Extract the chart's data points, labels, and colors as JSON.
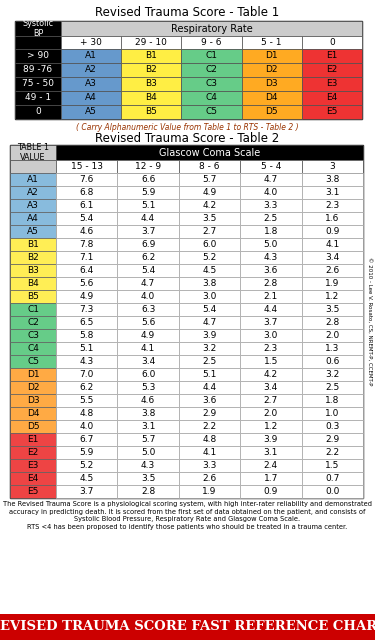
{
  "title1": "Revised Trauma Score - Table 1",
  "title2": "Revised Trauma Score - Table 2",
  "carry_text": "( Carry Alphanumeric Value from Table 1 to RTS - Table 2 )",
  "footer_text": "The Revised Trauma Score is a physiological scoring system, with high inter-rater reliability and demonstrated\naccuracy in predicting death. It is scored from the first set of data obtained on the patient, and consists of\nSystolic Blood Pressure, Respiratory Rate and Glasgow Coma Scale.\nRTS <4 has been proposed to identify those patients who should be treated in a trauma center.",
  "bottom_banner": "Revised Trauma Score Fast Reference Chart",
  "credit_text": "© 2010 - Lee V. Rosato, CS, NREMT-P, CCEMT-P",
  "table1_rr_header": "Respiratory Rate",
  "table1_rr_cols": [
    "+ 30",
    "29 - 10",
    "9 - 6",
    "5 - 1",
    "0"
  ],
  "table1_rows": [
    [
      "> 90",
      "A1",
      "B1",
      "C1",
      "D1",
      "E1"
    ],
    [
      "89 -76",
      "A2",
      "B2",
      "C2",
      "D2",
      "E2"
    ],
    [
      "75 - 50",
      "A3",
      "B3",
      "C3",
      "D3",
      "E3"
    ],
    [
      "49 - 1",
      "A4",
      "B4",
      "C4",
      "D4",
      "E4"
    ],
    [
      "0",
      "A5",
      "B5",
      "C5",
      "D5",
      "E5"
    ]
  ],
  "table2_col_header": "TABLE 1\nVALUE",
  "table2_gcs_header": "Glascow Coma Scale",
  "table2_gcs_cols": [
    "15 - 13",
    "12 - 9",
    "8 - 6",
    "5 - 4",
    "3"
  ],
  "table2_rows": [
    [
      "A1",
      "7.6",
      "6.6",
      "5.7",
      "4.7",
      "3.8"
    ],
    [
      "A2",
      "6.8",
      "5.9",
      "4.9",
      "4.0",
      "3.1"
    ],
    [
      "A3",
      "6.1",
      "5.1",
      "4.2",
      "3.3",
      "2.3"
    ],
    [
      "A4",
      "5.4",
      "4.4",
      "3.5",
      "2.5",
      "1.6"
    ],
    [
      "A5",
      "4.6",
      "3.7",
      "2.7",
      "1.8",
      "0.9"
    ],
    [
      "B1",
      "7.8",
      "6.9",
      "6.0",
      "5.0",
      "4.1"
    ],
    [
      "B2",
      "7.1",
      "6.2",
      "5.2",
      "4.3",
      "3.4"
    ],
    [
      "B3",
      "6.4",
      "5.4",
      "4.5",
      "3.6",
      "2.6"
    ],
    [
      "B4",
      "5.6",
      "4.7",
      "3.8",
      "2.8",
      "1.9"
    ],
    [
      "B5",
      "4.9",
      "4.0",
      "3.0",
      "2.1",
      "1.2"
    ],
    [
      "C1",
      "7.3",
      "6.3",
      "5.4",
      "4.4",
      "3.5"
    ],
    [
      "C2",
      "6.5",
      "5.6",
      "4.7",
      "3.7",
      "2.8"
    ],
    [
      "C3",
      "5.8",
      "4.9",
      "3.9",
      "3.0",
      "2.0"
    ],
    [
      "C4",
      "5.1",
      "4.1",
      "3.2",
      "2.3",
      "1.3"
    ],
    [
      "C5",
      "4.3",
      "3.4",
      "2.5",
      "1.5",
      "0.6"
    ],
    [
      "D1",
      "7.0",
      "6.0",
      "5.1",
      "4.2",
      "3.2"
    ],
    [
      "D2",
      "6.2",
      "5.3",
      "4.4",
      "3.4",
      "2.5"
    ],
    [
      "D3",
      "5.5",
      "4.6",
      "3.6",
      "2.7",
      "1.8"
    ],
    [
      "D4",
      "4.8",
      "3.8",
      "2.9",
      "2.0",
      "1.0"
    ],
    [
      "D5",
      "4.0",
      "3.1",
      "2.2",
      "1.2",
      "0.3"
    ],
    [
      "E1",
      "6.7",
      "5.7",
      "4.8",
      "3.9",
      "2.9"
    ],
    [
      "E2",
      "5.9",
      "5.0",
      "4.1",
      "3.1",
      "2.2"
    ],
    [
      "E3",
      "5.2",
      "4.3",
      "3.3",
      "2.4",
      "1.5"
    ],
    [
      "E4",
      "4.5",
      "3.5",
      "2.6",
      "1.7",
      "0.7"
    ],
    [
      "E5",
      "3.7",
      "2.8",
      "1.9",
      "0.9",
      "0.0"
    ]
  ],
  "col_colors_t1": [
    "#6699cc",
    "#ffee44",
    "#66cc88",
    "#ffaa22",
    "#ee3333"
  ],
  "t2_row_colors": {
    "A": "#88bbdd",
    "B": "#ffee55",
    "C": "#66cc88",
    "D": "#ffaa44",
    "E": "#ee4444"
  },
  "bg_color": "#ffffff",
  "banner_color": "#cc0000",
  "title_fontsize": 8.5,
  "cell_fontsize": 6.5,
  "header_fontsize": 7,
  "footer_fontsize": 4.8,
  "banner_fontsize": 9.5,
  "credit_fontsize": 4.0
}
